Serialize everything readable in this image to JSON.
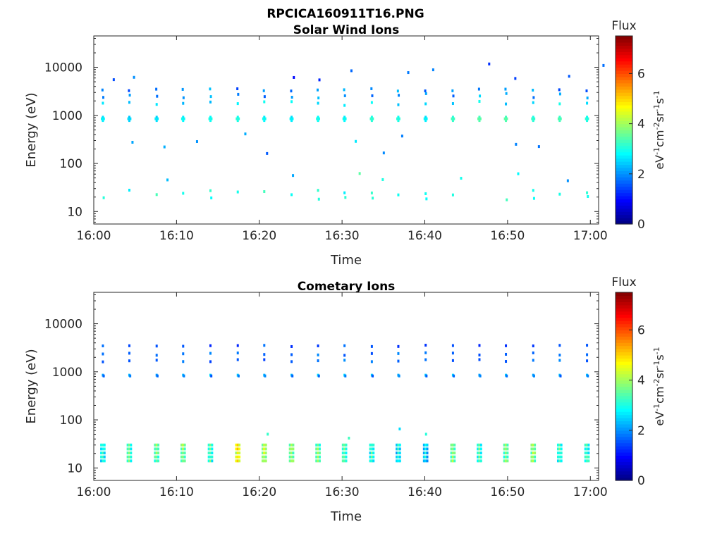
{
  "figure": {
    "title": "RPCICA160911T16.PNG"
  },
  "chart_data": [
    {
      "type": "heatmap",
      "title": "Solar Wind Ions",
      "xlabel": "Time",
      "ylabel": "Energy (eV)",
      "x_ticks": [
        "16:00",
        "16:10",
        "16:20",
        "16:30",
        "16:40",
        "16:50",
        "17:00"
      ],
      "x_range_min": [
        0,
        61
      ],
      "y_scale": "log",
      "y_ticks": [
        10,
        100,
        1000,
        10000
      ],
      "y_range": [
        5.5,
        45000
      ],
      "colorbar": {
        "label": "Flux",
        "unit_label": "eV-1cm-2sr-1s-1",
        "ticks": [
          0,
          2,
          4,
          6
        ],
        "range": [
          0,
          7.5
        ],
        "colormap": "jet"
      },
      "description_of_data": "sparse ion flux pixels; repeating energy sweeps every ~3.2 min; main band near 850 eV with flux ~3-4, weaker returns near 1600-3500 eV and 15-30 eV",
      "series": [
        {
          "name": "sweep_times_min",
          "values": [
            1.1,
            4.3,
            7.6,
            10.8,
            14.1,
            17.4,
            20.6,
            23.9,
            27.1,
            30.3,
            33.6,
            36.8,
            40.1,
            43.4,
            46.6,
            49.8,
            53.1,
            56.3,
            59.6
          ]
        },
        {
          "name": "main_band_energy_eV",
          "values": [
            850
          ]
        },
        {
          "name": "main_band_flux",
          "values": [
            3.2,
            3.0,
            3.1,
            3.3,
            3.4,
            3.5,
            3.3,
            3.2,
            3.4,
            3.3,
            3.6,
            3.5,
            3.2,
            3.7,
            3.9,
            3.9,
            3.6,
            3.8,
            3.5
          ]
        }
      ]
    },
    {
      "type": "heatmap",
      "title": "Cometary Ions",
      "xlabel": "Time",
      "ylabel": "Energy (eV)",
      "x_ticks": [
        "16:00",
        "16:10",
        "16:20",
        "16:30",
        "16:40",
        "16:50",
        "17:00"
      ],
      "x_range_min": [
        0,
        61
      ],
      "y_scale": "log",
      "y_ticks": [
        10,
        100,
        1000,
        10000
      ],
      "y_range": [
        5.5,
        45000
      ],
      "colorbar": {
        "label": "Flux",
        "unit_label": "eV-1cm-2sr-1s-1",
        "ticks": [
          0,
          2,
          4,
          6
        ],
        "range": [
          0,
          7.5
        ],
        "colormap": "jet"
      },
      "description_of_data": "strong low-energy cometary band 12-30 eV with flux ~3-5.5; weak points near 850 eV and 1600-4500 eV",
      "series": [
        {
          "name": "sweep_times_min",
          "values": [
            1.1,
            4.3,
            7.6,
            10.8,
            14.1,
            17.4,
            20.6,
            23.9,
            27.1,
            30.3,
            33.6,
            36.8,
            40.1,
            43.4,
            46.6,
            49.8,
            53.1,
            56.3,
            59.6
          ]
        },
        {
          "name": "low_band_energy_eV",
          "values": [
            14,
            30
          ]
        },
        {
          "name": "low_band_flux",
          "values": [
            3.6,
            4.0,
            4.2,
            4.5,
            3.9,
            5.3,
            4.8,
            4.6,
            4.2,
            4.1,
            3.8,
            3.4,
            3.2,
            4.4,
            4.0,
            4.3,
            4.6,
            3.8,
            3.9
          ]
        }
      ]
    }
  ]
}
